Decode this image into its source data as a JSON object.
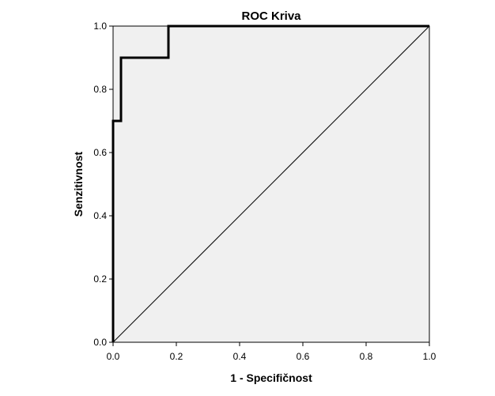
{
  "chart_data": {
    "type": "line",
    "title": "ROC Kriva",
    "xlabel": "1 - Specifičnost",
    "ylabel": "Senzitivnost",
    "xlim": [
      0,
      1
    ],
    "ylim": [
      0,
      1
    ],
    "x_ticks": [
      {
        "value": 0,
        "label": "0.0"
      },
      {
        "value": 0.2,
        "label": "0.2"
      },
      {
        "value": 0.4,
        "label": "0.4"
      },
      {
        "value": 0.6,
        "label": "0.6"
      },
      {
        "value": 0.8,
        "label": "0.8"
      },
      {
        "value": 1,
        "label": "1.0"
      }
    ],
    "y_ticks": [
      {
        "value": 0,
        "label": "0.0"
      },
      {
        "value": 0.2,
        "label": "0.2"
      },
      {
        "value": 0.4,
        "label": "0.4"
      },
      {
        "value": 0.6,
        "label": "0.6"
      },
      {
        "value": 0.8,
        "label": "0.8"
      },
      {
        "value": 1,
        "label": "1.0"
      }
    ],
    "grid": false,
    "background_color": "#f0f0f0",
    "series": [
      {
        "style": "step",
        "color": "#000000",
        "x": [
          0.0,
          0.0,
          0.025,
          0.025,
          0.175,
          0.175,
          1.0
        ],
        "y": [
          0.0,
          0.7,
          0.7,
          0.9,
          0.9,
          1.0,
          1.0
        ]
      },
      {
        "style": "reference",
        "color": "#000000",
        "x": [
          0.0,
          1.0
        ],
        "y": [
          0.0,
          1.0
        ]
      }
    ]
  }
}
